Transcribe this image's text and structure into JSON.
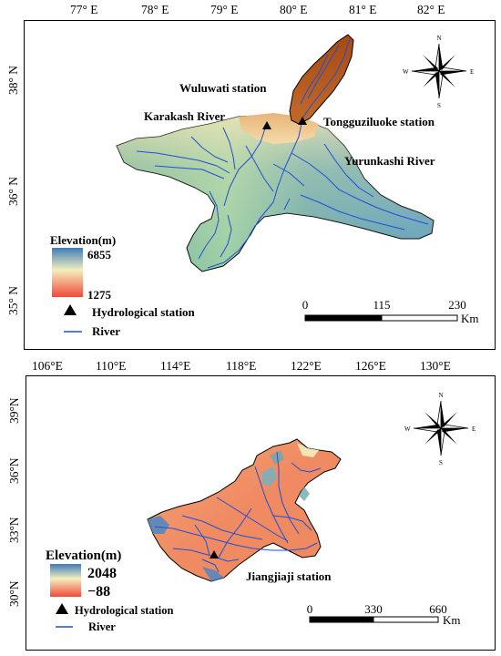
{
  "map1": {
    "x_ticks": [
      "77° E",
      "78° E",
      "79° E",
      "80° E",
      "81° E",
      "82° E"
    ],
    "y_ticks": [
      "38° N",
      "36° N",
      "35° N"
    ],
    "labels": {
      "wuluwati": "Wuluwati station",
      "karakash": "Karakash River",
      "tongguziluoke": "Tongguziluoke station",
      "yurunkashi": "Yurunkashi River"
    },
    "legend": {
      "title": "Elevation(m)",
      "max": "6855",
      "min": "1275",
      "station": "Hydrological station",
      "river": "River"
    },
    "scalebar": {
      "labels": [
        "0",
        "115",
        "230"
      ],
      "unit": "Km"
    },
    "compass": {
      "n": "N",
      "s": "S",
      "e": "E",
      "w": "W"
    }
  },
  "map2": {
    "x_ticks": [
      "106°E",
      "110°E",
      "114°E",
      "118°E",
      "122°E",
      "126°E",
      "130°E"
    ],
    "y_ticks": [
      "39°N",
      "36°N",
      "33°N",
      "30°N"
    ],
    "labels": {
      "jiangjiaji": "Jiangjiaji station"
    },
    "legend": {
      "title": "Elevation(m)",
      "max": "2048",
      "min": "−88",
      "station": "Hydrological station",
      "river": "River"
    },
    "scalebar": {
      "labels": [
        "0",
        "330",
        "660"
      ],
      "unit": "Km"
    },
    "compass": {
      "n": "N",
      "s": "S",
      "e": "E",
      "w": "W"
    }
  },
  "colors": {
    "elev_high": "#3f7cb7",
    "elev_mid": "#f3efbd",
    "elev_low": "#f14a3a",
    "basin_top": "#b1551a",
    "river": "#1f4fd8"
  }
}
